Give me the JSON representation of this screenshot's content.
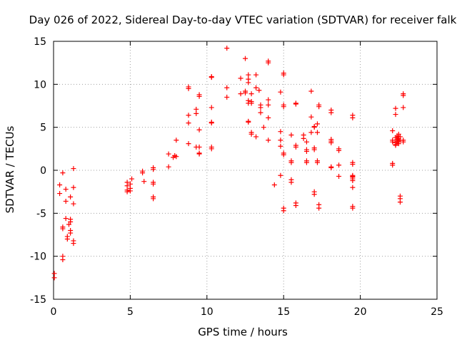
{
  "chart_data": {
    "type": "scatter",
    "title": "Day 026 of 2022, Sidereal Day-to-day VTEC variation (SDTVAR) for receiver falk",
    "xlabel": "GPS time / hours",
    "ylabel": "SDTVAR / TECUs",
    "xlim": [
      0,
      25
    ],
    "ylim": [
      -15,
      15
    ],
    "xticks": [
      0,
      5,
      10,
      15,
      20,
      25
    ],
    "yticks": [
      -15,
      -10,
      -5,
      0,
      5,
      10,
      15
    ],
    "grid": true,
    "marker": "+",
    "color": "#ff0000",
    "points": [
      [
        0.05,
        -12.0
      ],
      [
        0.05,
        -12.5
      ],
      [
        0.4,
        -1.7
      ],
      [
        0.4,
        -2.7
      ],
      [
        0.6,
        -0.3
      ],
      [
        0.6,
        -6.6
      ],
      [
        0.6,
        -6.8
      ],
      [
        0.6,
        -10.0
      ],
      [
        0.6,
        -10.4
      ],
      [
        0.8,
        -2.2
      ],
      [
        0.8,
        -3.6
      ],
      [
        0.8,
        -5.6
      ],
      [
        0.9,
        -7.7
      ],
      [
        0.9,
        -8.0
      ],
      [
        1.0,
        -6.3
      ],
      [
        1.1,
        -3.1
      ],
      [
        1.1,
        -5.7
      ],
      [
        1.1,
        -6.0
      ],
      [
        1.1,
        -7.0
      ],
      [
        1.1,
        -7.3
      ],
      [
        1.3,
        0.2
      ],
      [
        1.3,
        -2.0
      ],
      [
        1.3,
        -3.9
      ],
      [
        1.3,
        -8.2
      ],
      [
        1.3,
        -8.5
      ],
      [
        4.8,
        -1.4
      ],
      [
        4.8,
        -1.8
      ],
      [
        4.8,
        -2.3
      ],
      [
        4.8,
        -2.5
      ],
      [
        5.0,
        -1.6
      ],
      [
        5.0,
        -2.1
      ],
      [
        5.0,
        -2.4
      ],
      [
        5.1,
        -1.0
      ],
      [
        5.8,
        -0.1
      ],
      [
        5.8,
        -0.3
      ],
      [
        5.9,
        -1.3
      ],
      [
        6.5,
        0.3
      ],
      [
        6.5,
        0.1
      ],
      [
        6.5,
        -1.4
      ],
      [
        6.5,
        -1.6
      ],
      [
        6.5,
        -3.1
      ],
      [
        6.5,
        -3.3
      ],
      [
        7.5,
        1.9
      ],
      [
        7.5,
        0.4
      ],
      [
        7.8,
        1.5
      ],
      [
        7.9,
        1.7
      ],
      [
        8.0,
        1.6
      ],
      [
        8.0,
        3.5
      ],
      [
        8.8,
        9.5
      ],
      [
        8.8,
        9.7
      ],
      [
        8.8,
        6.4
      ],
      [
        8.8,
        5.5
      ],
      [
        8.8,
        3.1
      ],
      [
        9.3,
        7.1
      ],
      [
        9.3,
        6.6
      ],
      [
        9.3,
        2.7
      ],
      [
        9.5,
        8.8
      ],
      [
        9.5,
        8.6
      ],
      [
        9.5,
        4.7
      ],
      [
        9.5,
        2.7
      ],
      [
        9.5,
        2.0
      ],
      [
        9.5,
        1.9
      ],
      [
        10.3,
        10.8
      ],
      [
        10.3,
        10.9
      ],
      [
        10.3,
        7.3
      ],
      [
        10.3,
        5.6
      ],
      [
        10.3,
        5.5
      ],
      [
        10.3,
        2.7
      ],
      [
        10.3,
        2.5
      ],
      [
        11.3,
        14.2
      ],
      [
        11.3,
        9.6
      ],
      [
        11.3,
        8.5
      ],
      [
        12.2,
        10.7
      ],
      [
        12.2,
        8.9
      ],
      [
        12.5,
        13.0
      ],
      [
        12.5,
        9.0
      ],
      [
        12.5,
        9.2
      ],
      [
        12.7,
        10.6
      ],
      [
        12.7,
        11.1
      ],
      [
        12.7,
        10.2
      ],
      [
        12.7,
        8.1
      ],
      [
        12.7,
        7.8
      ],
      [
        12.7,
        5.7
      ],
      [
        12.7,
        5.6
      ],
      [
        12.9,
        8.9
      ],
      [
        12.9,
        8.0
      ],
      [
        12.9,
        7.8
      ],
      [
        12.9,
        4.4
      ],
      [
        12.9,
        4.2
      ],
      [
        13.2,
        11.1
      ],
      [
        13.2,
        9.6
      ],
      [
        13.2,
        3.9
      ],
      [
        13.4,
        9.3
      ],
      [
        13.5,
        7.6
      ],
      [
        13.5,
        7.3
      ],
      [
        13.5,
        6.7
      ],
      [
        13.7,
        5.0
      ],
      [
        14.0,
        12.7
      ],
      [
        14.0,
        12.5
      ],
      [
        14.0,
        7.6
      ],
      [
        14.0,
        8.2
      ],
      [
        14.0,
        6.1
      ],
      [
        14.0,
        3.5
      ],
      [
        14.4,
        -1.7
      ],
      [
        14.8,
        9.1
      ],
      [
        14.8,
        4.5
      ],
      [
        14.8,
        3.5
      ],
      [
        14.8,
        2.8
      ],
      [
        14.8,
        -0.6
      ],
      [
        15.0,
        11.3
      ],
      [
        15.0,
        11.1
      ],
      [
        15.0,
        7.6
      ],
      [
        15.0,
        7.4
      ],
      [
        15.0,
        2.0
      ],
      [
        15.0,
        1.8
      ],
      [
        15.0,
        -4.4
      ],
      [
        15.0,
        -4.7
      ],
      [
        15.5,
        4.1
      ],
      [
        15.5,
        1.1
      ],
      [
        15.5,
        0.9
      ],
      [
        15.5,
        -1.1
      ],
      [
        15.5,
        -1.4
      ],
      [
        15.8,
        7.8
      ],
      [
        15.8,
        7.7
      ],
      [
        15.8,
        2.9
      ],
      [
        15.8,
        2.7
      ],
      [
        15.8,
        -3.8
      ],
      [
        15.8,
        -4.1
      ],
      [
        16.3,
        4.1
      ],
      [
        16.3,
        3.7
      ],
      [
        16.5,
        3.3
      ],
      [
        16.5,
        2.4
      ],
      [
        16.5,
        2.2
      ],
      [
        16.5,
        1.1
      ],
      [
        16.5,
        0.9
      ],
      [
        16.8,
        9.2
      ],
      [
        16.8,
        6.2
      ],
      [
        16.8,
        4.4
      ],
      [
        17.0,
        5.1
      ],
      [
        17.0,
        5.0
      ],
      [
        17.0,
        2.6
      ],
      [
        17.0,
        2.4
      ],
      [
        17.0,
        -2.5
      ],
      [
        17.0,
        -2.8
      ],
      [
        17.2,
        5.4
      ],
      [
        17.2,
        4.4
      ],
      [
        17.2,
        1.1
      ],
      [
        17.2,
        0.9
      ],
      [
        17.3,
        7.6
      ],
      [
        17.3,
        7.4
      ],
      [
        17.3,
        -4.0
      ],
      [
        17.3,
        -4.4
      ],
      [
        18.1,
        7.0
      ],
      [
        18.1,
        6.7
      ],
      [
        18.1,
        3.6
      ],
      [
        18.1,
        3.4
      ],
      [
        18.1,
        3.2
      ],
      [
        18.1,
        0.4
      ],
      [
        18.1,
        0.3
      ],
      [
        18.6,
        2.5
      ],
      [
        18.6,
        2.3
      ],
      [
        18.6,
        0.6
      ],
      [
        18.6,
        -0.7
      ],
      [
        19.5,
        6.4
      ],
      [
        19.5,
        6.1
      ],
      [
        19.5,
        0.9
      ],
      [
        19.5,
        0.7
      ],
      [
        19.5,
        -0.6
      ],
      [
        19.5,
        -0.7
      ],
      [
        19.5,
        -0.8
      ],
      [
        19.5,
        -1.0
      ],
      [
        19.5,
        -1.2
      ],
      [
        19.5,
        -2.0
      ],
      [
        19.5,
        -4.2
      ],
      [
        19.5,
        -4.4
      ],
      [
        22.1,
        4.6
      ],
      [
        22.1,
        3.5
      ],
      [
        22.1,
        3.3
      ],
      [
        22.1,
        0.8
      ],
      [
        22.1,
        0.6
      ],
      [
        22.3,
        7.2
      ],
      [
        22.3,
        6.5
      ],
      [
        22.3,
        3.8
      ],
      [
        22.3,
        3.2
      ],
      [
        22.3,
        3.0
      ],
      [
        22.3,
        2.9
      ],
      [
        22.4,
        4.0
      ],
      [
        22.4,
        3.6
      ],
      [
        22.4,
        3.4
      ],
      [
        22.5,
        4.2
      ],
      [
        22.5,
        3.9
      ],
      [
        22.5,
        3.7
      ],
      [
        22.5,
        3.5
      ],
      [
        22.5,
        3.3
      ],
      [
        22.5,
        3.1
      ],
      [
        22.6,
        3.9
      ],
      [
        22.6,
        3.5
      ],
      [
        22.6,
        -3.0
      ],
      [
        22.6,
        -3.3
      ],
      [
        22.6,
        -3.7
      ],
      [
        22.8,
        8.9
      ],
      [
        22.8,
        8.7
      ],
      [
        22.8,
        7.3
      ],
      [
        22.8,
        3.5
      ],
      [
        22.8,
        3.3
      ]
    ]
  }
}
